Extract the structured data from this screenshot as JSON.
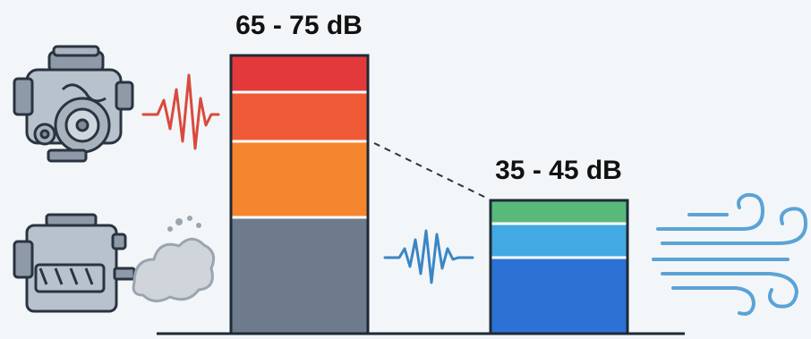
{
  "labels": {
    "high_range": "65 - 75 dB",
    "low_range": "35 - 45 dB"
  },
  "colors": {
    "high_red": "#e3393a",
    "high_orange_red": "#ee5a36",
    "high_orange": "#f6862e",
    "high_gray": "#6d7b8c",
    "low_green": "#58b97a",
    "low_light_blue": "#43a9e3",
    "low_blue": "#2c72d4",
    "red_wave": "#d94a3c",
    "blue_wave": "#3a86c4",
    "wind": "#5aa3d6",
    "outline": "#1e2a36"
  },
  "icons": {
    "left_top": "engine-icon",
    "left_bottom": "diesel-engine-smoke-icon",
    "left_wave": "red-sound-wave-icon",
    "middle_wave": "blue-sound-wave-icon",
    "right": "wind-icon"
  }
}
